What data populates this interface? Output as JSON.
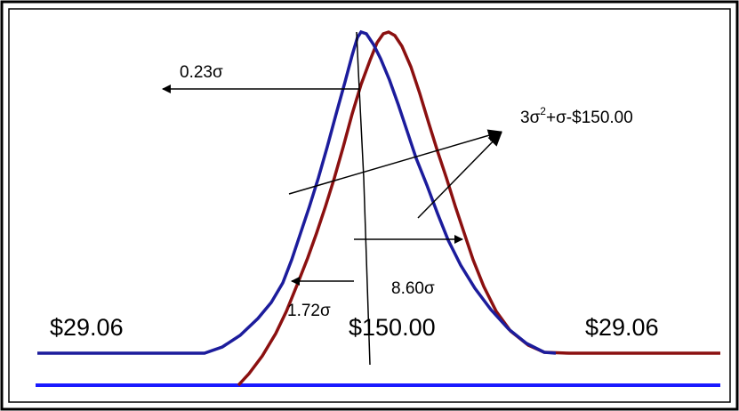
{
  "labels": {
    "sigma_left_top": "0.23σ",
    "formula_base": "3σ",
    "formula_exp": "2",
    "formula_rest": "+σ-$150.00",
    "sigma_right_mid": "8.60σ",
    "sigma_left_low": "1.72σ",
    "price_left": "$29.06",
    "price_center": "$150.00",
    "price_right": "$29.06"
  },
  "colors": {
    "curve_blue": "#1c1c9c",
    "curve_red": "#8b1010",
    "baseline": "#1a1aff",
    "ink": "#000000"
  }
}
